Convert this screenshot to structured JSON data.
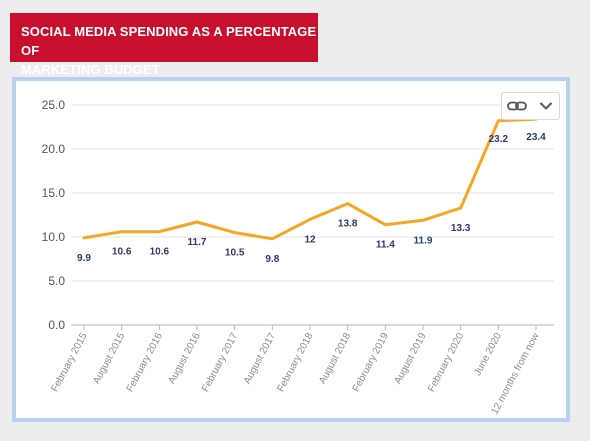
{
  "header": {
    "title_line1": "SOCIAL MEDIA SPENDING AS A PERCENTAGE OF",
    "title_line2": "MARKETING BUDGET"
  },
  "toolbar": {
    "link_icon": "link-icon",
    "menu_icon": "chevron-down-icon"
  },
  "colors": {
    "title_background": "#c8102e",
    "line": "#f5a623",
    "frame_border": "#b9d0ee",
    "value_label": "#2b3a67"
  },
  "chart_data": {
    "type": "line",
    "categories": [
      "February 2015",
      "August 2015",
      "February 2016",
      "August 2016",
      "February 2017",
      "August 2017",
      "February 2018",
      "August 2018",
      "February 2019",
      "August 2019",
      "February 2020",
      "June 2020",
      "12 months from now"
    ],
    "values": [
      9.9,
      10.6,
      10.6,
      11.7,
      10.5,
      9.8,
      12,
      13.8,
      11.4,
      11.9,
      13.3,
      23.2,
      23.4
    ],
    "value_labels": [
      "9.9",
      "10.6",
      "10.6",
      "11.7",
      "10.5",
      "9.8",
      "12",
      "13.8",
      "11.4",
      "11.9",
      "13.3",
      "23.2",
      "23.4"
    ],
    "yticks": [
      "0.0",
      "5.0",
      "10.0",
      "15.0",
      "20.0",
      "25.0"
    ],
    "ylim": [
      0,
      25
    ],
    "grid": true,
    "legend": "none",
    "title": "SOCIAL MEDIA SPENDING AS A PERCENTAGE OF MARKETING BUDGET"
  }
}
